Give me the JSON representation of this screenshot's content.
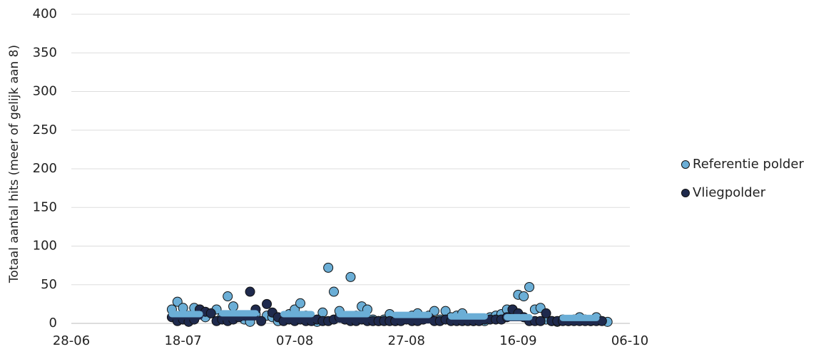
{
  "chart_data": {
    "type": "scatter",
    "y_label": "Totaal aantal hits (meer of gelijk aan 8)",
    "xlim": [
      "28-06",
      "06-10"
    ],
    "xticks": [
      "28-06",
      "18-07",
      "07-08",
      "27-08",
      "16-09",
      "06-10"
    ],
    "ylim": [
      0,
      400
    ],
    "yticks": [
      0,
      50,
      100,
      150,
      200,
      250,
      300,
      350,
      400
    ],
    "grid": true,
    "legend": "right",
    "series": [
      {
        "name": "Referentie polder",
        "color": "#6baed6",
        "x": [
          "16-07",
          "17-07",
          "18-07",
          "19-07",
          "20-07",
          "21-07",
          "22-07",
          "24-07",
          "25-07",
          "26-07",
          "27-07",
          "28-07",
          "29-07",
          "30-07",
          "31-07",
          "02-08",
          "03-08",
          "04-08",
          "05-08",
          "06-08",
          "07-08",
          "08-08",
          "09-08",
          "10-08",
          "11-08",
          "12-08",
          "13-08",
          "14-08",
          "15-08",
          "16-08",
          "17-08",
          "18-08",
          "19-08",
          "20-08",
          "21-08",
          "22-08",
          "23-08",
          "24-08",
          "25-08",
          "26-08",
          "27-08",
          "28-08",
          "29-08",
          "30-08",
          "31-08",
          "01-09",
          "02-09",
          "03-09",
          "04-09",
          "05-09",
          "06-09",
          "07-09",
          "08-09",
          "09-09",
          "10-09",
          "11-09",
          "12-09",
          "13-09",
          "14-09",
          "15-09",
          "16-09",
          "17-09",
          "18-09",
          "19-09",
          "20-09",
          "21-09",
          "22-09",
          "23-09",
          "24-09",
          "25-09",
          "26-09",
          "27-09",
          "28-09",
          "29-09",
          "30-09",
          "02-10"
        ],
        "values": [
          18,
          28,
          20,
          10,
          20,
          18,
          8,
          18,
          8,
          35,
          22,
          10,
          5,
          2,
          12,
          10,
          8,
          3,
          5,
          12,
          18,
          26,
          10,
          5,
          2,
          14,
          72,
          41,
          16,
          5,
          60,
          10,
          22,
          18,
          5,
          3,
          5,
          12,
          3,
          5,
          8,
          10,
          13,
          5,
          10,
          16,
          5,
          16,
          8,
          10,
          13,
          5,
          3,
          5,
          3,
          8,
          10,
          12,
          18,
          18,
          37,
          35,
          47,
          18,
          20,
          5,
          3,
          2,
          5,
          3,
          5,
          8,
          5,
          3,
          8,
          2
        ],
        "segments": [
          {
            "from": "16-07",
            "to": "21-07",
            "value": 12
          },
          {
            "from": "25-07",
            "to": "31-07",
            "value": 13
          },
          {
            "from": "05-08",
            "to": "10-08",
            "value": 12
          },
          {
            "from": "15-08",
            "to": "20-08",
            "value": 12
          },
          {
            "from": "25-08",
            "to": "31-08",
            "value": 11
          },
          {
            "from": "04-09",
            "to": "10-09",
            "value": 9
          },
          {
            "from": "14-09",
            "to": "18-09",
            "value": 8
          },
          {
            "from": "24-09",
            "to": "30-09",
            "value": 7
          }
        ]
      },
      {
        "name": "Vliegpolder",
        "color": "#1f2a4d",
        "x": [
          "16-07",
          "17-07",
          "18-07",
          "19-07",
          "20-07",
          "21-07",
          "22-07",
          "23-07",
          "24-07",
          "25-07",
          "26-07",
          "27-07",
          "28-07",
          "29-07",
          "30-07",
          "31-07",
          "01-08",
          "02-08",
          "03-08",
          "04-08",
          "05-08",
          "06-08",
          "07-08",
          "08-08",
          "09-08",
          "10-08",
          "11-08",
          "12-08",
          "13-08",
          "14-08",
          "15-08",
          "16-08",
          "17-08",
          "18-08",
          "19-08",
          "20-08",
          "21-08",
          "22-08",
          "23-08",
          "24-08",
          "25-08",
          "26-08",
          "27-08",
          "28-08",
          "29-08",
          "30-08",
          "31-08",
          "01-09",
          "02-09",
          "03-09",
          "04-09",
          "05-09",
          "06-09",
          "07-09",
          "08-09",
          "09-09",
          "10-09",
          "11-09",
          "12-09",
          "13-09",
          "14-09",
          "15-09",
          "16-09",
          "17-09",
          "18-09",
          "19-09",
          "20-09",
          "21-09",
          "22-09",
          "23-09",
          "24-09",
          "25-09",
          "26-09",
          "27-09",
          "28-09",
          "29-09",
          "30-09",
          "01-10"
        ],
        "values": [
          8,
          3,
          5,
          2,
          5,
          18,
          15,
          13,
          3,
          5,
          3,
          5,
          8,
          10,
          41,
          18,
          3,
          25,
          14,
          8,
          3,
          5,
          3,
          5,
          3,
          3,
          5,
          3,
          3,
          5,
          8,
          5,
          3,
          3,
          5,
          3,
          3,
          3,
          3,
          3,
          3,
          3,
          5,
          3,
          3,
          5,
          8,
          3,
          3,
          5,
          3,
          3,
          3,
          3,
          3,
          3,
          5,
          5,
          5,
          5,
          8,
          18,
          13,
          8,
          3,
          3,
          3,
          13,
          3,
          3,
          3,
          3,
          3,
          3,
          3,
          3,
          3,
          3
        ],
        "segments": [
          {
            "from": "16-07",
            "to": "21-07",
            "value": 9
          },
          {
            "from": "25-07",
            "to": "31-07",
            "value": 8
          },
          {
            "from": "05-08",
            "to": "10-08",
            "value": 5
          },
          {
            "from": "15-08",
            "to": "20-08",
            "value": 5
          },
          {
            "from": "25-08",
            "to": "31-08",
            "value": 4
          },
          {
            "from": "04-09",
            "to": "10-09",
            "value": 4
          },
          {
            "from": "14-09",
            "to": "18-09",
            "value": 7
          },
          {
            "from": "24-09",
            "to": "30-09",
            "value": 3
          }
        ]
      }
    ]
  }
}
